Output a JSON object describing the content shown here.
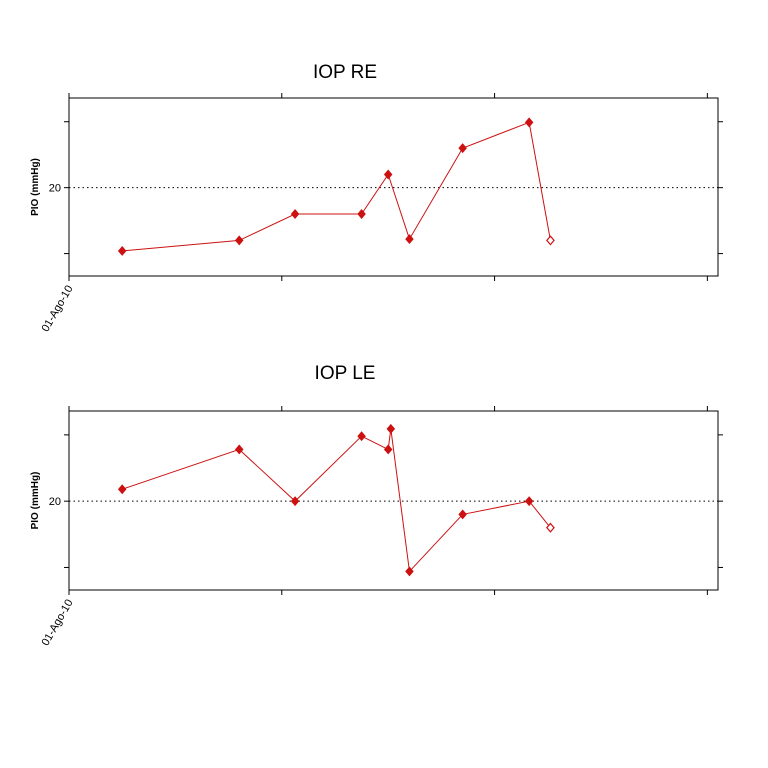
{
  "chart_data": [
    {
      "type": "line",
      "title": "IOP RE",
      "ylabel": "PIO (mmHg)",
      "xlabel": "",
      "x_tick_labels": [
        "01-Ago-10"
      ],
      "y_tick_labels": [
        "20"
      ],
      "reference_line": 20,
      "grid": false,
      "ylim": [
        13.3,
        26.8
      ],
      "series": [
        {
          "color": "#cc1111",
          "x": [
            1,
            3.2,
            4.25,
            5.5,
            6,
            6.4,
            7.4,
            8.65,
            9.05
          ],
          "y": [
            15.2,
            16,
            18.0,
            18.0,
            21.0,
            16.1,
            23.0,
            24.95,
            16.0
          ],
          "open_last_point": true
        }
      ]
    },
    {
      "type": "line",
      "title": "IOP LE",
      "ylabel": "PIO (mmHg)",
      "xlabel": "",
      "x_tick_labels": [
        "01-Ago-10"
      ],
      "y_tick_labels": [
        "20"
      ],
      "reference_line": 20,
      "grid": false,
      "ylim": [
        13.3,
        26.8
      ],
      "series": [
        {
          "color": "#cc1111",
          "x": [
            1,
            3.2,
            4.25,
            5.5,
            6,
            6.05,
            6.4,
            7.4,
            8.65,
            9.05
          ],
          "y": [
            20.9,
            23.9,
            20.0,
            24.9,
            23.9,
            25.45,
            14.7,
            19.0,
            20.0,
            18.0
          ],
          "open_last_point": true
        }
      ]
    }
  ]
}
